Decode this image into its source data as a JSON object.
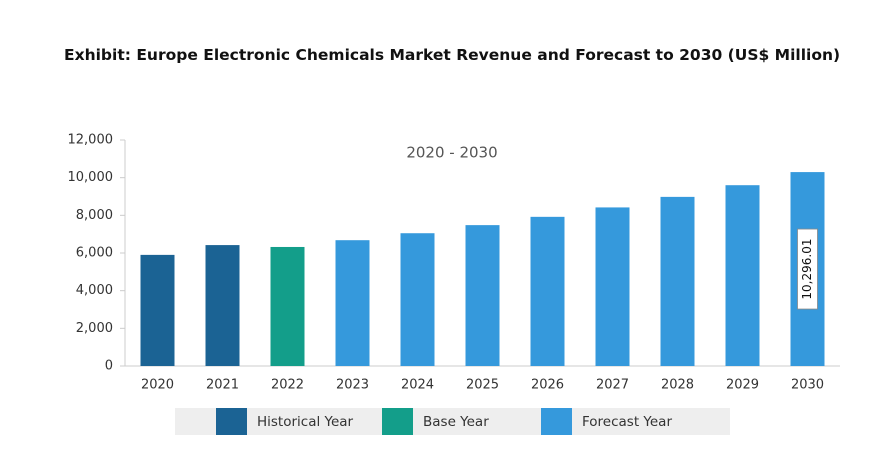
{
  "chart_data": {
    "type": "bar",
    "title": "Exhibit: Europe Electronic Chemicals Market Revenue and Forecast to 2030 (US$ Million)",
    "annotation": "2020 - 2030",
    "categories": [
      "2020",
      "2021",
      "2022",
      "2023",
      "2024",
      "2025",
      "2026",
      "2027",
      "2028",
      "2029",
      "2030"
    ],
    "series": [
      {
        "name": "Historical Year",
        "color": "#1b6394",
        "values": [
          5900,
          6420,
          null,
          null,
          null,
          null,
          null,
          null,
          null,
          null,
          null
        ]
      },
      {
        "name": "Base Year",
        "color": "#139e8a",
        "values": [
          null,
          null,
          6320,
          null,
          null,
          null,
          null,
          null,
          null,
          null,
          null
        ]
      },
      {
        "name": "Forecast Year",
        "color": "#3599dc",
        "values": [
          null,
          null,
          null,
          6680,
          7050,
          7480,
          7920,
          8420,
          8980,
          9600,
          10296.01
        ],
        "value_labels": [
          null,
          null,
          null,
          null,
          null,
          null,
          null,
          null,
          null,
          null,
          "10,296.01"
        ]
      }
    ],
    "ylim": [
      0,
      12000
    ],
    "yticks": [
      0,
      {
        "value": 2000,
        "label": "2,000"
      },
      {
        "value": 4000,
        "label": "4,000"
      },
      {
        "value": 6000,
        "label": "6,000"
      },
      {
        "value": 8000,
        "label": "8,000"
      },
      {
        "value": 10000,
        "label": "10,000"
      },
      {
        "value": 12000,
        "label": "12,000"
      }
    ],
    "grid": false
  }
}
